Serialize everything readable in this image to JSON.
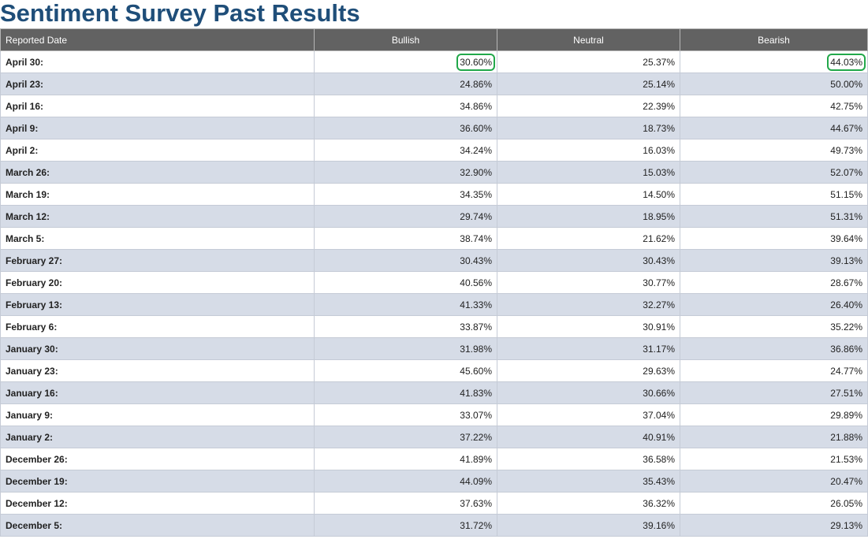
{
  "page": {
    "title": "Sentiment Survey Past Results"
  },
  "table": {
    "headers": {
      "date": "Reported Date",
      "bullish": "Bullish",
      "neutral": "Neutral",
      "bearish": "Bearish"
    },
    "highlight_color": "#22a84a",
    "rows": [
      {
        "date": "April 30:",
        "bullish": "30.60%",
        "neutral": "25.37%",
        "bearish": "44.03%",
        "highlight_bullish": true,
        "highlight_bearish": true
      },
      {
        "date": "April 23:",
        "bullish": "24.86%",
        "neutral": "25.14%",
        "bearish": "50.00%"
      },
      {
        "date": "April 16:",
        "bullish": "34.86%",
        "neutral": "22.39%",
        "bearish": "42.75%"
      },
      {
        "date": "April 9:",
        "bullish": "36.60%",
        "neutral": "18.73%",
        "bearish": "44.67%"
      },
      {
        "date": "April 2:",
        "bullish": "34.24%",
        "neutral": "16.03%",
        "bearish": "49.73%"
      },
      {
        "date": "March 26:",
        "bullish": "32.90%",
        "neutral": "15.03%",
        "bearish": "52.07%"
      },
      {
        "date": "March 19:",
        "bullish": "34.35%",
        "neutral": "14.50%",
        "bearish": "51.15%"
      },
      {
        "date": "March 12:",
        "bullish": "29.74%",
        "neutral": "18.95%",
        "bearish": "51.31%"
      },
      {
        "date": "March 5:",
        "bullish": "38.74%",
        "neutral": "21.62%",
        "bearish": "39.64%"
      },
      {
        "date": "February 27:",
        "bullish": "30.43%",
        "neutral": "30.43%",
        "bearish": "39.13%"
      },
      {
        "date": "February 20:",
        "bullish": "40.56%",
        "neutral": "30.77%",
        "bearish": "28.67%"
      },
      {
        "date": "February 13:",
        "bullish": "41.33%",
        "neutral": "32.27%",
        "bearish": "26.40%"
      },
      {
        "date": "February 6:",
        "bullish": "33.87%",
        "neutral": "30.91%",
        "bearish": "35.22%"
      },
      {
        "date": "January 30:",
        "bullish": "31.98%",
        "neutral": "31.17%",
        "bearish": "36.86%"
      },
      {
        "date": "January 23:",
        "bullish": "45.60%",
        "neutral": "29.63%",
        "bearish": "24.77%"
      },
      {
        "date": "January 16:",
        "bullish": "41.83%",
        "neutral": "30.66%",
        "bearish": "27.51%"
      },
      {
        "date": "January 9:",
        "bullish": "33.07%",
        "neutral": "37.04%",
        "bearish": "29.89%"
      },
      {
        "date": "January 2:",
        "bullish": "37.22%",
        "neutral": "40.91%",
        "bearish": "21.88%"
      },
      {
        "date": "December 26:",
        "bullish": "41.89%",
        "neutral": "36.58%",
        "bearish": "21.53%"
      },
      {
        "date": "December 19:",
        "bullish": "44.09%",
        "neutral": "35.43%",
        "bearish": "20.47%"
      },
      {
        "date": "December 12:",
        "bullish": "37.63%",
        "neutral": "36.32%",
        "bearish": "26.05%"
      },
      {
        "date": "December 5:",
        "bullish": "31.72%",
        "neutral": "39.16%",
        "bearish": "29.13%"
      }
    ]
  }
}
